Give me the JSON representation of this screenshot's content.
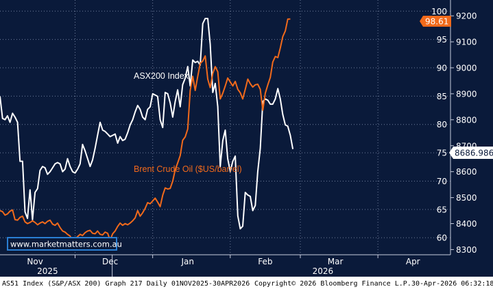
{
  "colors": {
    "background": "#0a1a3a",
    "asx": "#ffffff",
    "brent": "#f26a1b",
    "grid": "#6f7e9c",
    "url_box": "#2a7fd4",
    "tag_brent_bg": "#f26a1b",
    "tag_asx_bg": "#ffffff"
  },
  "chart_data": {
    "type": "line",
    "x_range": [
      "2025-11-01",
      "2026-04-30"
    ],
    "grid": true,
    "series_labels": [
      "ASX200 Index",
      "Brent Crude Oil ($US/barrel)"
    ],
    "x_ticks": {
      "months": [
        "Nov",
        "Dec",
        "Jan",
        "Feb",
        "Mar",
        "Apr"
      ],
      "years": [
        "2025",
        "2026"
      ]
    },
    "left_axis": {
      "ylim": [
        57,
        101
      ],
      "ticks": [
        "60",
        "65",
        "70",
        "75",
        "80",
        "85",
        "90",
        "95",
        "100"
      ]
    },
    "right_axis": {
      "ylim": [
        8280,
        9240
      ],
      "ticks": [
        "8300",
        "8400",
        "8500",
        "8600",
        "8700",
        "8800",
        "8900",
        "9000",
        "9100",
        "9200"
      ]
    },
    "last_value_tags": {
      "brent": "98.61",
      "asx": "8686.986"
    },
    "series": [
      {
        "name": "ASX200 Index",
        "axis": "right",
        "points": [
          [
            "2025-11-01",
            8890
          ],
          [
            "2025-11-02",
            8805
          ],
          [
            "2025-11-03",
            8800
          ],
          [
            "2025-11-04",
            8815
          ],
          [
            "2025-11-05",
            8790
          ],
          [
            "2025-11-06",
            8825
          ],
          [
            "2025-11-07",
            8810
          ],
          [
            "2025-11-08",
            8790
          ],
          [
            "2025-11-09",
            8640
          ],
          [
            "2025-11-10",
            8640
          ],
          [
            "2025-11-11",
            8445
          ],
          [
            "2025-11-12",
            8420
          ],
          [
            "2025-11-13",
            8530
          ],
          [
            "2025-11-14",
            8415
          ],
          [
            "2025-11-15",
            8520
          ],
          [
            "2025-11-16",
            8535
          ],
          [
            "2025-11-17",
            8605
          ],
          [
            "2025-11-18",
            8620
          ],
          [
            "2025-11-19",
            8615
          ],
          [
            "2025-11-20",
            8590
          ],
          [
            "2025-11-21",
            8600
          ],
          [
            "2025-11-22",
            8615
          ],
          [
            "2025-11-23",
            8630
          ],
          [
            "2025-11-24",
            8635
          ],
          [
            "2025-11-25",
            8630
          ],
          [
            "2025-11-26",
            8600
          ],
          [
            "2025-11-27",
            8610
          ],
          [
            "2025-11-28",
            8650
          ],
          [
            "2025-11-29",
            8620
          ],
          [
            "2025-11-30",
            8600
          ],
          [
            "2025-12-01",
            8595
          ],
          [
            "2025-12-02",
            8610
          ],
          [
            "2025-12-03",
            8630
          ],
          [
            "2025-12-04",
            8705
          ],
          [
            "2025-12-05",
            8680
          ],
          [
            "2025-12-06",
            8650
          ],
          [
            "2025-12-07",
            8620
          ],
          [
            "2025-12-08",
            8645
          ],
          [
            "2025-12-09",
            8690
          ],
          [
            "2025-12-10",
            8740
          ],
          [
            "2025-12-11",
            8790
          ],
          [
            "2025-12-12",
            8760
          ],
          [
            "2025-12-13",
            8755
          ],
          [
            "2025-12-14",
            8745
          ],
          [
            "2025-12-15",
            8735
          ],
          [
            "2025-12-16",
            8740
          ],
          [
            "2025-12-17",
            8745
          ],
          [
            "2025-12-18",
            8710
          ],
          [
            "2025-12-19",
            8735
          ],
          [
            "2025-12-20",
            8720
          ],
          [
            "2025-12-21",
            8725
          ],
          [
            "2025-12-22",
            8750
          ],
          [
            "2025-12-23",
            8780
          ],
          [
            "2025-12-24",
            8800
          ],
          [
            "2025-12-25",
            8830
          ],
          [
            "2025-12-26",
            8855
          ],
          [
            "2025-12-27",
            8840
          ],
          [
            "2025-12-28",
            8810
          ],
          [
            "2025-12-29",
            8800
          ],
          [
            "2025-12-30",
            8840
          ],
          [
            "2025-12-31",
            8850
          ],
          [
            "2026-01-01",
            8900
          ],
          [
            "2026-01-02",
            8895
          ],
          [
            "2026-01-03",
            8890
          ],
          [
            "2026-01-04",
            8800
          ],
          [
            "2026-01-05",
            8770
          ],
          [
            "2026-01-06",
            8905
          ],
          [
            "2026-01-07",
            8900
          ],
          [
            "2026-01-08",
            8865
          ],
          [
            "2026-01-09",
            8810
          ],
          [
            "2026-01-10",
            8870
          ],
          [
            "2026-01-11",
            8915
          ],
          [
            "2026-01-12",
            8850
          ],
          [
            "2026-01-13",
            8935
          ],
          [
            "2026-01-14",
            8960
          ],
          [
            "2026-01-15",
            9005
          ],
          [
            "2026-01-16",
            8930
          ],
          [
            "2026-01-17",
            9030
          ],
          [
            "2026-01-18",
            9020
          ],
          [
            "2026-01-19",
            9025
          ],
          [
            "2026-01-20",
            9010
          ],
          [
            "2026-01-21",
            9170
          ],
          [
            "2026-01-22",
            9190
          ],
          [
            "2026-01-23",
            9190
          ],
          [
            "2026-01-24",
            9090
          ],
          [
            "2026-01-25",
            8905
          ],
          [
            "2026-01-26",
            8940
          ],
          [
            "2026-01-27",
            8850
          ],
          [
            "2026-01-28",
            8620
          ],
          [
            "2026-01-29",
            8720
          ],
          [
            "2026-01-30",
            8760
          ],
          [
            "2026-01-31",
            8650
          ],
          [
            "2026-02-01",
            8600
          ],
          [
            "2026-02-02",
            8640
          ],
          [
            "2026-02-03",
            8660
          ],
          [
            "2026-02-04",
            8430
          ],
          [
            "2026-02-05",
            8380
          ],
          [
            "2026-02-06",
            8390
          ],
          [
            "2026-02-07",
            8520
          ],
          [
            "2026-02-08",
            8510
          ],
          [
            "2026-02-09",
            8505
          ],
          [
            "2026-02-10",
            8450
          ],
          [
            "2026-02-11",
            8470
          ],
          [
            "2026-02-12",
            8600
          ],
          [
            "2026-02-13",
            8690
          ],
          [
            "2026-02-14",
            8870
          ],
          [
            "2026-02-15",
            8880
          ],
          [
            "2026-02-16",
            8875
          ],
          [
            "2026-02-17",
            8860
          ],
          [
            "2026-02-18",
            8860
          ],
          [
            "2026-02-19",
            8880
          ],
          [
            "2026-02-20",
            8920
          ],
          [
            "2026-02-21",
            8880
          ],
          [
            "2026-02-22",
            8820
          ],
          [
            "2026-02-23",
            8780
          ],
          [
            "2026-02-24",
            8775
          ],
          [
            "2026-02-25",
            8740
          ],
          [
            "2026-02-26",
            8686.986
          ]
        ]
      },
      {
        "name": "Brent Crude Oil ($US/barrel)",
        "axis": "left",
        "points": [
          [
            "2025-11-01",
            64.8
          ],
          [
            "2025-11-02",
            64.6
          ],
          [
            "2025-11-03",
            64.0
          ],
          [
            "2025-11-04",
            64.2
          ],
          [
            "2025-11-05",
            64.7
          ],
          [
            "2025-11-06",
            64.9
          ],
          [
            "2025-11-07",
            63.2
          ],
          [
            "2025-11-08",
            63.1
          ],
          [
            "2025-11-09",
            63.6
          ],
          [
            "2025-11-10",
            63.8
          ],
          [
            "2025-11-11",
            62.8
          ],
          [
            "2025-11-12",
            62.5
          ],
          [
            "2025-11-13",
            62.7
          ],
          [
            "2025-11-14",
            63.0
          ],
          [
            "2025-11-15",
            62.7
          ],
          [
            "2025-11-16",
            62.3
          ],
          [
            "2025-11-17",
            62.6
          ],
          [
            "2025-11-18",
            62.8
          ],
          [
            "2025-11-19",
            62.5
          ],
          [
            "2025-11-20",
            62.9
          ],
          [
            "2025-11-21",
            63.1
          ],
          [
            "2025-11-22",
            62.4
          ],
          [
            "2025-11-23",
            62.2
          ],
          [
            "2025-11-24",
            62.6
          ],
          [
            "2025-11-25",
            61.8
          ],
          [
            "2025-11-26",
            61.2
          ],
          [
            "2025-11-27",
            61.0
          ],
          [
            "2025-11-28",
            60.6
          ],
          [
            "2025-11-29",
            60.3
          ],
          [
            "2025-11-30",
            59.4
          ],
          [
            "2025-12-01",
            59.8
          ],
          [
            "2025-12-02",
            60.2
          ],
          [
            "2025-12-03",
            60.6
          ],
          [
            "2025-12-04",
            60.4
          ],
          [
            "2025-12-05",
            60.9
          ],
          [
            "2025-12-06",
            61.2
          ],
          [
            "2025-12-07",
            61.3
          ],
          [
            "2025-12-08",
            60.8
          ],
          [
            "2025-12-09",
            60.7
          ],
          [
            "2025-12-10",
            61.2
          ],
          [
            "2025-12-11",
            60.6
          ],
          [
            "2025-12-12",
            60.5
          ],
          [
            "2025-12-13",
            61.0
          ],
          [
            "2025-12-14",
            60.8
          ],
          [
            "2025-12-15",
            59.6
          ],
          [
            "2025-12-16",
            60.7
          ],
          [
            "2025-12-17",
            61.2
          ],
          [
            "2025-12-18",
            62.0
          ],
          [
            "2025-12-19",
            62.6
          ],
          [
            "2025-12-20",
            62.2
          ],
          [
            "2025-12-21",
            62.5
          ],
          [
            "2025-12-22",
            62.3
          ],
          [
            "2025-12-23",
            62.6
          ],
          [
            "2025-12-24",
            63.0
          ],
          [
            "2025-12-25",
            63.5
          ],
          [
            "2025-12-26",
            64.8
          ],
          [
            "2025-12-27",
            63.8
          ],
          [
            "2025-12-28",
            64.4
          ],
          [
            "2025-12-29",
            65.2
          ],
          [
            "2025-12-30",
            66.2
          ],
          [
            "2025-12-31",
            66.0
          ],
          [
            "2026-01-01",
            66.5
          ],
          [
            "2026-01-02",
            67.0
          ],
          [
            "2026-01-03",
            66.3
          ],
          [
            "2026-01-04",
            65.5
          ],
          [
            "2026-01-05",
            67.5
          ],
          [
            "2026-01-06",
            68.8
          ],
          [
            "2026-01-07",
            68.6
          ],
          [
            "2026-01-08",
            68.7
          ],
          [
            "2026-01-09",
            70.0
          ],
          [
            "2026-01-10",
            72.0
          ],
          [
            "2026-01-11",
            73.2
          ],
          [
            "2026-01-12",
            74.5
          ],
          [
            "2026-01-13",
            77.2
          ],
          [
            "2026-01-14",
            77.8
          ],
          [
            "2026-01-15",
            79.2
          ],
          [
            "2026-01-16",
            86.0
          ],
          [
            "2026-01-17",
            88.5
          ],
          [
            "2026-01-18",
            86.0
          ],
          [
            "2026-01-19",
            88.5
          ],
          [
            "2026-01-20",
            90.8
          ],
          [
            "2026-01-21",
            91.2
          ],
          [
            "2026-01-22",
            92.1
          ],
          [
            "2026-01-23",
            88.0
          ],
          [
            "2026-01-24",
            86.5
          ],
          [
            "2026-01-25",
            89.0
          ],
          [
            "2026-01-26",
            90.2
          ],
          [
            "2026-01-27",
            89.3
          ],
          [
            "2026-01-28",
            84.5
          ],
          [
            "2026-01-29",
            85.5
          ],
          [
            "2026-01-30",
            86.8
          ],
          [
            "2026-01-31",
            88.2
          ],
          [
            "2026-02-01",
            87.5
          ],
          [
            "2026-02-02",
            86.8
          ],
          [
            "2026-02-03",
            87.6
          ],
          [
            "2026-02-04",
            86.2
          ],
          [
            "2026-02-05",
            85.6
          ],
          [
            "2026-02-06",
            84.5
          ],
          [
            "2026-02-07",
            86.2
          ],
          [
            "2026-02-08",
            88.0
          ],
          [
            "2026-02-09",
            87.2
          ],
          [
            "2026-02-10",
            86.6
          ],
          [
            "2026-02-11",
            87.0
          ],
          [
            "2026-02-12",
            87.1
          ],
          [
            "2026-02-13",
            86.2
          ],
          [
            "2026-02-14",
            82.5
          ],
          [
            "2026-02-15",
            85.5
          ],
          [
            "2026-02-16",
            87.0
          ],
          [
            "2026-02-17",
            88.3
          ],
          [
            "2026-02-18",
            91.0
          ],
          [
            "2026-02-19",
            92.0
          ],
          [
            "2026-02-20",
            91.8
          ],
          [
            "2026-02-21",
            93.5
          ],
          [
            "2026-02-22",
            95.5
          ],
          [
            "2026-02-23",
            96.5
          ],
          [
            "2026-02-24",
            98.6
          ],
          [
            "2026-02-25",
            98.61
          ]
        ]
      }
    ]
  },
  "url_box": {
    "text": "www.marketmatters.com.au"
  },
  "footer": {
    "left": "AS51 Index (S&P/ASX 200) Graph 217 Daily 01NOV2025-30APR2026",
    "center": "Copyright© 2026 Bloomberg Finance L.P.",
    "right": "30-Apr-2026 06:32:18"
  }
}
